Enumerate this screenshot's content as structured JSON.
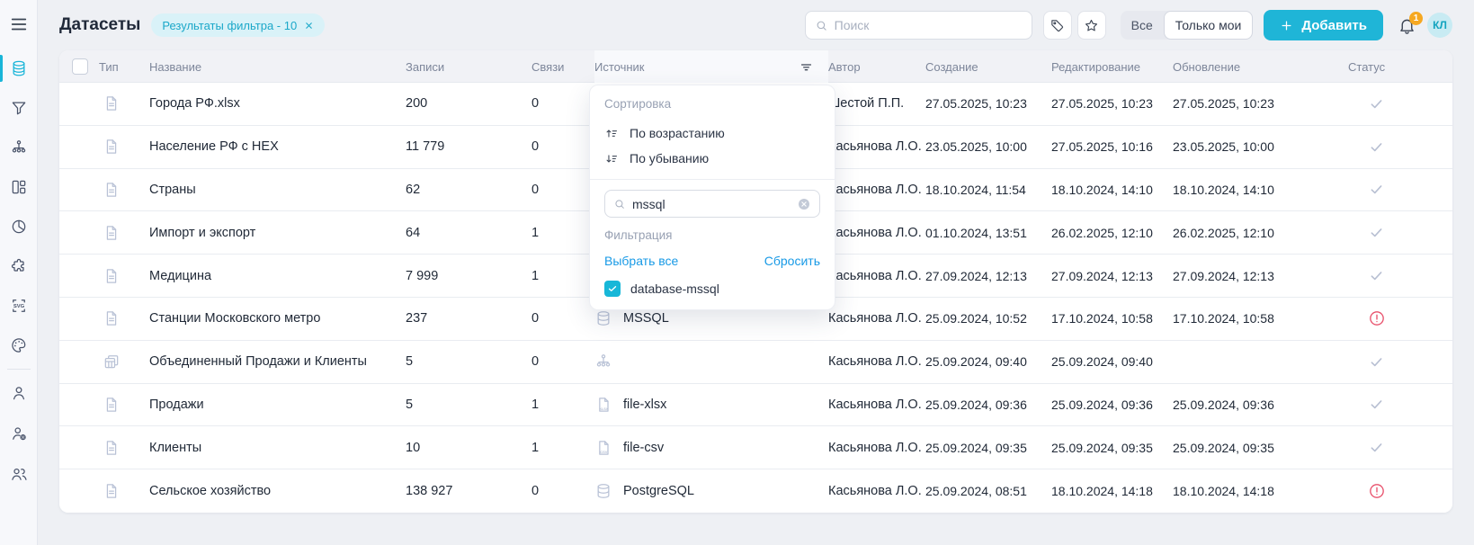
{
  "page": {
    "title": "Датасеты",
    "filter_badge": "Результаты фильтра - 10"
  },
  "topbar": {
    "search_placeholder": "Поиск",
    "toggle_all": "Все",
    "toggle_mine": "Только мои",
    "add_button": "Добавить",
    "notification_count": "1",
    "avatar_initials": "КЛ"
  },
  "sidebar": {
    "items": [
      {
        "icon": "datasets",
        "active": true
      },
      {
        "icon": "filter",
        "active": false
      },
      {
        "icon": "hierarchy",
        "active": false
      },
      {
        "icon": "layouts",
        "active": false
      },
      {
        "icon": "pie-chart",
        "active": false
      },
      {
        "icon": "puzzle",
        "active": false
      },
      {
        "icon": "svg-assets",
        "active": false
      },
      {
        "icon": "palette",
        "active": false
      }
    ],
    "items_bottom": [
      {
        "icon": "user",
        "active": false
      },
      {
        "icon": "user-settings",
        "active": false
      },
      {
        "icon": "users",
        "active": false
      }
    ]
  },
  "table": {
    "headers": [
      "Тип",
      "Название",
      "Записи",
      "Связи",
      "Источник",
      "Автор",
      "Создание",
      "Редактирование",
      "Обновление",
      "Статус"
    ],
    "rows": [
      {
        "type": "file",
        "name": "Города РФ.xlsx",
        "records": "200",
        "links": "0",
        "source_icon": "",
        "source_label": "",
        "author": "Шестой П.П.",
        "created": "27.05.2025, 10:23",
        "edited": "27.05.2025, 10:23",
        "updated": "27.05.2025, 10:23",
        "status": "ok"
      },
      {
        "type": "file",
        "name": "Население РФ с НЕХ",
        "records": "11 779",
        "links": "0",
        "source_icon": "",
        "source_label": "",
        "author": "Касьянова Л.О.",
        "created": "23.05.2025, 10:00",
        "edited": "27.05.2025, 10:16",
        "updated": "23.05.2025, 10:00",
        "status": "ok"
      },
      {
        "type": "file",
        "name": "Страны",
        "records": "62",
        "links": "0",
        "source_icon": "",
        "source_label": "",
        "author": "Касьянова Л.О.",
        "created": "18.10.2024, 11:54",
        "edited": "18.10.2024, 14:10",
        "updated": "18.10.2024, 14:10",
        "status": "ok"
      },
      {
        "type": "file",
        "name": "Импорт и экспорт",
        "records": "64",
        "links": "1",
        "source_icon": "",
        "source_label": "",
        "author": "Касьянова Л.О.",
        "created": "01.10.2024, 13:51",
        "edited": "26.02.2025, 12:10",
        "updated": "26.02.2025, 12:10",
        "status": "ok"
      },
      {
        "type": "file",
        "name": "Медицина",
        "records": "7 999",
        "links": "1",
        "source_icon": "",
        "source_label": "",
        "author": "Касьянова Л.О.",
        "created": "27.09.2024, 12:13",
        "edited": "27.09.2024, 12:13",
        "updated": "27.09.2024, 12:13",
        "status": "ok"
      },
      {
        "type": "file",
        "name": "Станции Московского метро",
        "records": "237",
        "links": "0",
        "source_icon": "database",
        "source_label": "MSSQL",
        "author": "Касьянова Л.О.",
        "created": "25.09.2024, 10:52",
        "edited": "17.10.2024, 10:58",
        "updated": "17.10.2024, 10:58",
        "status": "error"
      },
      {
        "type": "joined-table",
        "name": "Объединенный Продажи и Клиенты",
        "records": "5",
        "links": "0",
        "source_icon": "hierarchy",
        "source_label": "",
        "author": "Касьянова Л.О.",
        "created": "25.09.2024, 09:40",
        "edited": "25.09.2024, 09:40",
        "updated": "",
        "status": "ok"
      },
      {
        "type": "file",
        "name": "Продажи",
        "records": "5",
        "links": "1",
        "source_icon": "file-xlsx",
        "source_label": "file-xlsx",
        "author": "Касьянова Л.О.",
        "created": "25.09.2024, 09:36",
        "edited": "25.09.2024, 09:36",
        "updated": "25.09.2024, 09:36",
        "status": "ok"
      },
      {
        "type": "file",
        "name": "Клиенты",
        "records": "10",
        "links": "1",
        "source_icon": "file-csv",
        "source_label": "file-csv",
        "author": "Касьянова Л.О.",
        "created": "25.09.2024, 09:35",
        "edited": "25.09.2024, 09:35",
        "updated": "25.09.2024, 09:35",
        "status": "ok"
      },
      {
        "type": "file",
        "name": "Сельское хозяйство",
        "records": "138 927",
        "links": "0",
        "source_icon": "database",
        "source_label": "PostgreSQL",
        "author": "Касьянова Л.О.",
        "created": "25.09.2024, 08:51",
        "edited": "18.10.2024, 14:18",
        "updated": "18.10.2024, 14:18",
        "status": "error"
      }
    ]
  },
  "filter_dropdown": {
    "sort_label": "Сортировка",
    "sort_asc": "По возрастанию",
    "sort_desc": "По убыванию",
    "search_value": "mssql",
    "filter_label": "Фильтрация",
    "select_all": "Выбрать все",
    "reset": "Сбросить",
    "options": [
      {
        "label": "database-mssql",
        "checked": true
      }
    ]
  },
  "colors": {
    "accent": "#1fb5d7",
    "badge_bg": "#d9f2f8",
    "badge_text": "#1ba8c9",
    "link_blue": "#189ae6",
    "error_red": "#e8506b",
    "check_gray": "#b7bfd2",
    "notification_orange": "#f6a821"
  }
}
